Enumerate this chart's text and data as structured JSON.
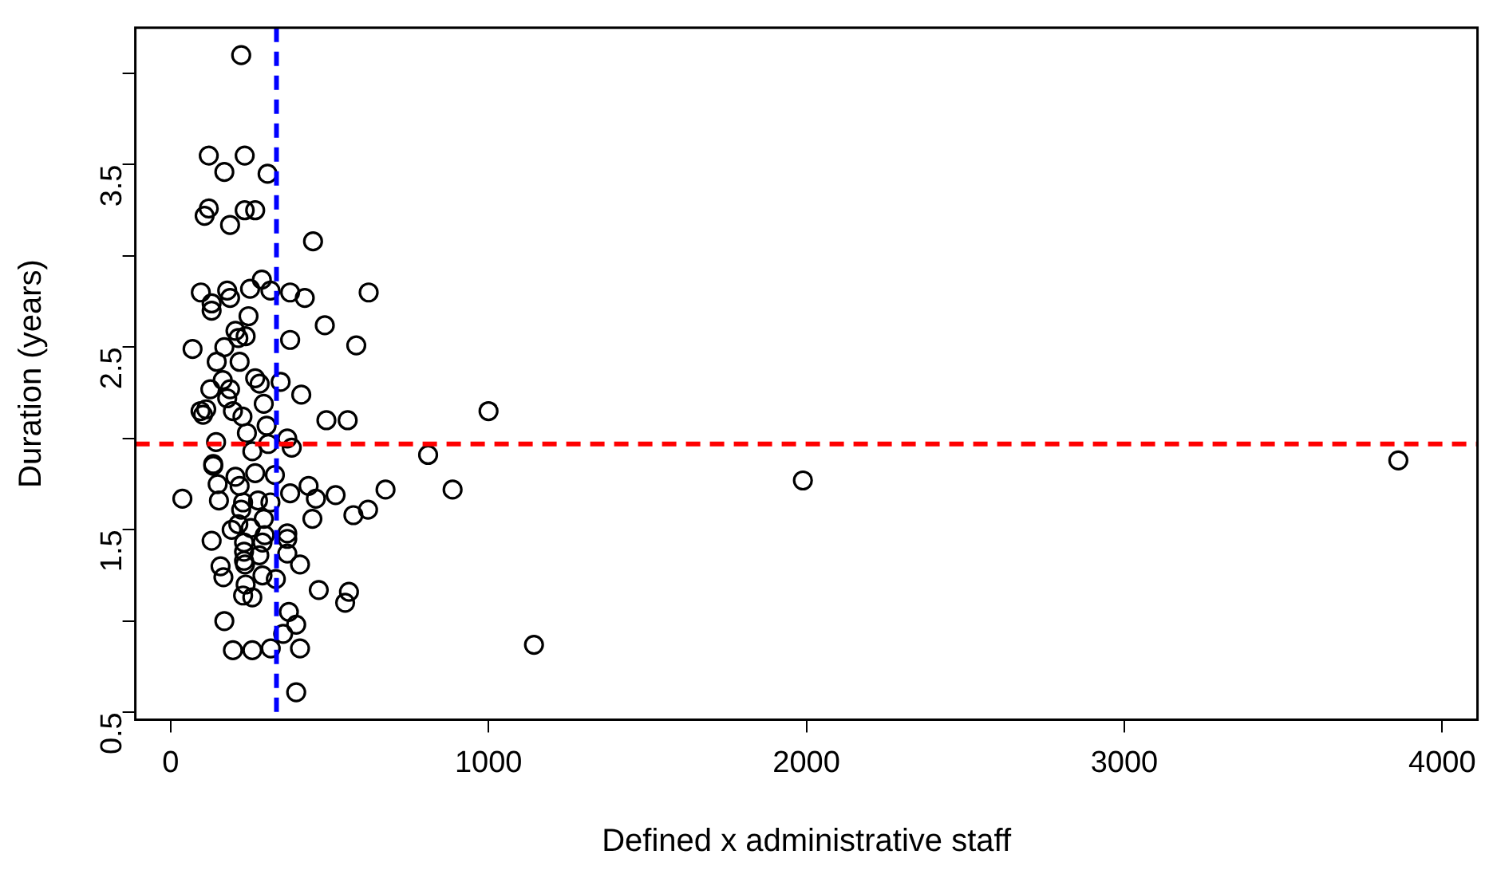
{
  "chart_data": {
    "type": "scatter",
    "xlabel": "Defined x administrative staff",
    "ylabel": "Duration (years)",
    "xlim": [
      -111,
      4111
    ],
    "xticks": [
      0,
      1000,
      2000,
      3000,
      4000
    ],
    "ylim": [
      0.46,
      4.25
    ],
    "yticks": [
      0.5,
      {
        "value": 1,
        "label": null
      },
      1.5,
      {
        "value": 2,
        "label": null
      },
      2.5,
      {
        "value": 3,
        "label": null
      },
      3.5,
      {
        "value": 4,
        "label": null
      }
    ],
    "grid": false,
    "legend": false,
    "marker": "circle",
    "series": [
      {
        "color": "#000000",
        "x": [
          222,
          120,
          233,
          169,
          305,
          120,
          107,
          233,
          266,
          187,
          448,
          95,
          178,
          187,
          250,
          287,
          314,
          376,
          422,
          623,
          129,
          129,
          245,
          485,
          204,
          213,
          236,
          376,
          584,
          69,
          169,
          145,
          217,
          164,
          266,
          280,
          346,
          125,
          187,
          411,
          178,
          293,
          94,
          112,
          102,
          196,
          226,
          490,
          557,
          1000,
          302,
          240,
          367,
          143,
          381,
          307,
          257,
          810,
          134,
          134,
          266,
          204,
          328,
          148,
          217,
          434,
          676,
          887,
          376,
          519,
          37,
          152,
          228,
          275,
          314,
          457,
          222,
          621,
          575,
          293,
          446,
          213,
          252,
          192,
          367,
          296,
          367,
          129,
          231,
          289,
          367,
          231,
          279,
          231,
          407,
          157,
          234,
          166,
          289,
          331,
          236,
          466,
          561,
          549,
          228,
          257,
          372,
          395,
          354,
          169,
          196,
          257,
          315,
          407,
          395,
          1989,
          1143,
          3862
        ],
        "values": [
          4.1,
          3.55,
          3.55,
          3.46,
          3.45,
          3.26,
          3.22,
          3.25,
          3.25,
          3.17,
          3.08,
          2.8,
          2.81,
          2.77,
          2.82,
          2.87,
          2.81,
          2.8,
          2.77,
          2.8,
          2.74,
          2.7,
          2.67,
          2.62,
          2.59,
          2.55,
          2.56,
          2.54,
          2.51,
          2.49,
          2.5,
          2.42,
          2.42,
          2.32,
          2.33,
          2.3,
          2.31,
          2.27,
          2.27,
          2.24,
          2.22,
          2.19,
          2.15,
          2.16,
          2.13,
          2.15,
          2.12,
          2.1,
          2.1,
          2.15,
          2.07,
          2.03,
          2.0,
          1.98,
          1.95,
          1.97,
          1.93,
          1.91,
          1.86,
          1.85,
          1.81,
          1.79,
          1.8,
          1.75,
          1.74,
          1.74,
          1.72,
          1.72,
          1.7,
          1.69,
          1.67,
          1.66,
          1.65,
          1.66,
          1.65,
          1.67,
          1.61,
          1.61,
          1.58,
          1.56,
          1.56,
          1.53,
          1.51,
          1.5,
          1.48,
          1.47,
          1.45,
          1.44,
          1.43,
          1.43,
          1.37,
          1.38,
          1.36,
          1.33,
          1.31,
          1.3,
          1.31,
          1.24,
          1.25,
          1.23,
          1.2,
          1.17,
          1.16,
          1.1,
          1.14,
          1.13,
          1.05,
          0.98,
          0.93,
          1.0,
          0.84,
          0.84,
          0.85,
          0.85,
          0.61,
          1.77,
          0.87,
          1.88
        ]
      }
    ],
    "ref_lines": [
      {
        "axis": "x",
        "value": 333,
        "color": "#0000ff",
        "line_style": "dashed"
      },
      {
        "axis": "y",
        "value": 1.97,
        "color": "#ff0000",
        "line_style": "dashed"
      }
    ]
  }
}
